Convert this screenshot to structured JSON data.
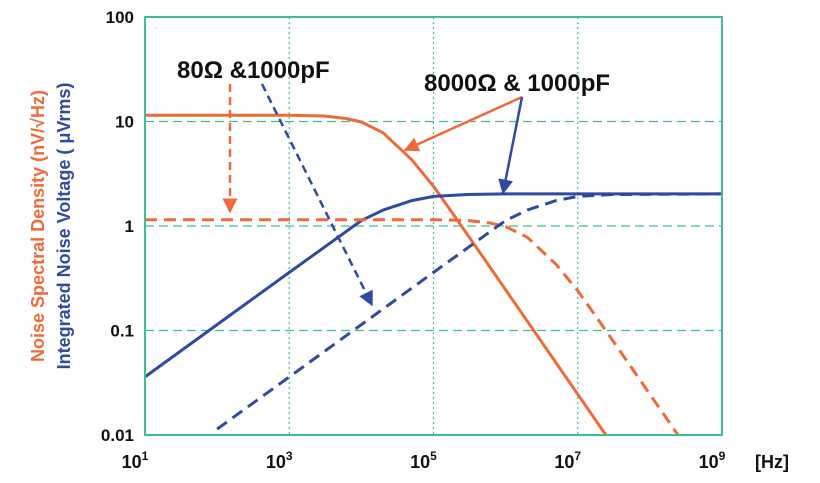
{
  "chart_data": {
    "type": "line",
    "x_scale": "log",
    "y_scale": "log",
    "xlim": [
      10,
      1000000000
    ],
    "ylim": [
      0.01,
      100
    ],
    "x_ticks": [
      {
        "value": 10,
        "base": "10",
        "exp": "1"
      },
      {
        "value": 1000,
        "base": "10",
        "exp": "3"
      },
      {
        "value": 100000,
        "base": "10",
        "exp": "5"
      },
      {
        "value": 10000000,
        "base": "10",
        "exp": "7"
      },
      {
        "value": 1000000000,
        "base": "10",
        "exp": "9"
      }
    ],
    "x_unit": "[Hz]",
    "y_ticks": [
      {
        "value": 100,
        "label": "100"
      },
      {
        "value": 10,
        "label": "10"
      },
      {
        "value": 1,
        "label": "1"
      },
      {
        "value": 0.1,
        "label": "0.1"
      },
      {
        "value": 0.01,
        "label": "0.01"
      }
    ],
    "ylabel_left": "Noise Spectral Density (nV/√Hz)",
    "ylabel_right": "Integrated Noise Voltage ( μVrms)",
    "grid": true,
    "colors": {
      "orange": "#EE6A3A",
      "blue": "#2F4A9E",
      "grid": "#3FBF93",
      "frame": "#3FBF93"
    },
    "series": [
      {
        "color": "orange",
        "style": "solid",
        "points": [
          [
            10,
            11.5
          ],
          [
            1000,
            11.5
          ],
          [
            3000,
            11.3
          ],
          [
            6000,
            10.7
          ],
          [
            10000,
            9.9
          ],
          [
            20000,
            7.8
          ],
          [
            50000,
            4.3
          ],
          [
            100000,
            2.4
          ],
          [
            200000,
            1.22
          ],
          [
            500000,
            0.49
          ],
          [
            1000000,
            0.245
          ],
          [
            10000000,
            0.0245
          ],
          [
            25000000,
            0.0098
          ]
        ]
      },
      {
        "color": "blue",
        "style": "solid",
        "points": [
          [
            10,
            0.036
          ],
          [
            100,
            0.114
          ],
          [
            1000,
            0.36
          ],
          [
            3000,
            0.62
          ],
          [
            10000,
            1.13
          ],
          [
            20000,
            1.42
          ],
          [
            50000,
            1.75
          ],
          [
            100000,
            1.92
          ],
          [
            300000,
            2.0
          ],
          [
            1000000,
            2.03
          ],
          [
            1000000000,
            2.03
          ]
        ]
      },
      {
        "color": "orange",
        "style": "dashed",
        "points": [
          [
            10,
            1.15
          ],
          [
            100000,
            1.15
          ],
          [
            300000,
            1.13
          ],
          [
            600000,
            1.07
          ],
          [
            1000000,
            0.99
          ],
          [
            2000000,
            0.78
          ],
          [
            5000000,
            0.43
          ],
          [
            10000000,
            0.24
          ],
          [
            20000000,
            0.122
          ],
          [
            50000000,
            0.049
          ],
          [
            100000000,
            0.0245
          ],
          [
            250000000,
            0.0098
          ]
        ]
      },
      {
        "color": "blue",
        "style": "dashed",
        "points": [
          [
            100,
            0.0114
          ],
          [
            1000,
            0.036
          ],
          [
            10000,
            0.114
          ],
          [
            100000,
            0.36
          ],
          [
            300000,
            0.62
          ],
          [
            1000000,
            1.13
          ],
          [
            2000000,
            1.42
          ],
          [
            5000000,
            1.75
          ],
          [
            10000000,
            1.92
          ],
          [
            30000000,
            2.0
          ],
          [
            1000000000,
            2.03
          ]
        ]
      }
    ],
    "annotations": [
      {
        "text": "80Ω &1000pF"
      },
      {
        "text": "8000Ω & 1000pF"
      }
    ]
  }
}
